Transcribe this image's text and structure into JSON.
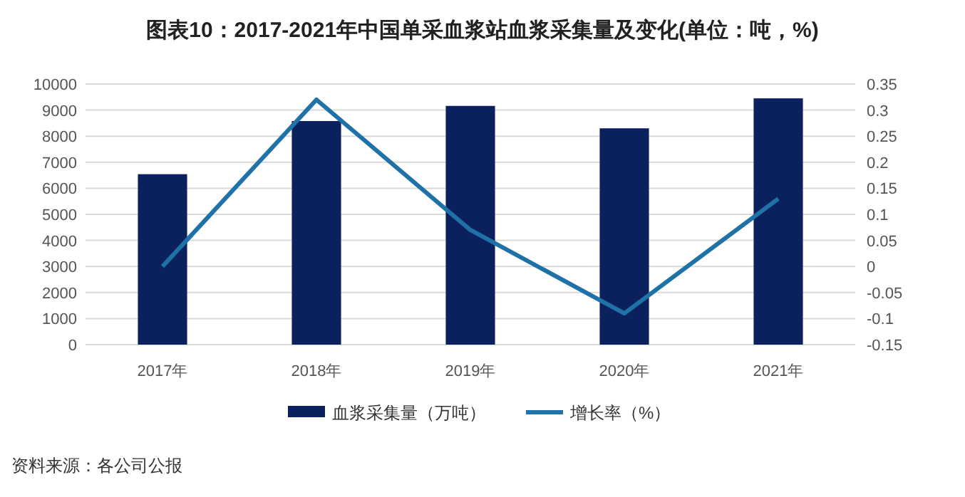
{
  "chart_data": {
    "type": "bar",
    "title": "图表10：2017-2021年中国单采血浆站血浆采集量及变化(单位：吨，%)",
    "categories": [
      "2017年",
      "2018年",
      "2019年",
      "2020年",
      "2021年"
    ],
    "series": [
      {
        "name": "血浆采集量（万吨）",
        "color": "#0a215e",
        "values": [
          6540,
          8580,
          9160,
          8300,
          9450
        ]
      },
      {
        "name": "增长率（%）",
        "type": "line",
        "axis": "y2",
        "color": "#1f72a8",
        "values": [
          0,
          0.32,
          0.07,
          -0.09,
          0.13
        ]
      }
    ],
    "ylim": [
      0,
      10000
    ],
    "yticks": [
      0,
      1000,
      2000,
      3000,
      4000,
      5000,
      6000,
      7000,
      8000,
      9000,
      10000
    ],
    "y2lim": [
      -0.15,
      0.35
    ],
    "y2ticks": [
      -0.15,
      -0.1,
      -0.05,
      0,
      0.05,
      0.1,
      0.15,
      0.2,
      0.25,
      0.3,
      0.35
    ],
    "grid": "y",
    "legend": "bottom",
    "marker": "none",
    "line_style": "solid",
    "annotations": [
      "资料来源：各公司公报"
    ]
  }
}
